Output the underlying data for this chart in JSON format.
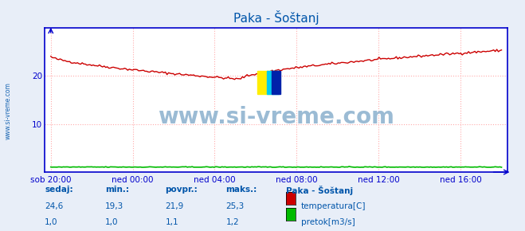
{
  "title": "Paka - Šoštanj",
  "background_color": "#e8eef8",
  "plot_bg_color": "#ffffff",
  "grid_color": "#ffaaaa",
  "temp_color": "#cc0000",
  "flow_color": "#00bb00",
  "axis_color": "#0000cc",
  "label_color": "#0000cc",
  "text_color": "#0055aa",
  "ylim": [
    0,
    30
  ],
  "yticks": [
    10,
    20
  ],
  "xlabel_ticks": [
    "sob 20:00",
    "ned 00:00",
    "ned 04:00",
    "ned 08:00",
    "ned 12:00",
    "ned 16:00"
  ],
  "n_points": 288,
  "watermark": "www.si-vreme.com",
  "stat_labels": [
    "sedaj:",
    "min.:",
    "povpr.:",
    "maks.:"
  ],
  "stat_values_temp": [
    "24,6",
    "19,3",
    "21,9",
    "25,3"
  ],
  "stat_values_flow": [
    "1,0",
    "1,0",
    "1,1",
    "1,2"
  ],
  "legend_title": "Paka - Šoštanj",
  "legend_items": [
    "temperatura[C]",
    "pretok[m3/s]"
  ],
  "legend_colors": [
    "#cc0000",
    "#00bb00"
  ],
  "left_watermark": "www.si-vreme.com"
}
